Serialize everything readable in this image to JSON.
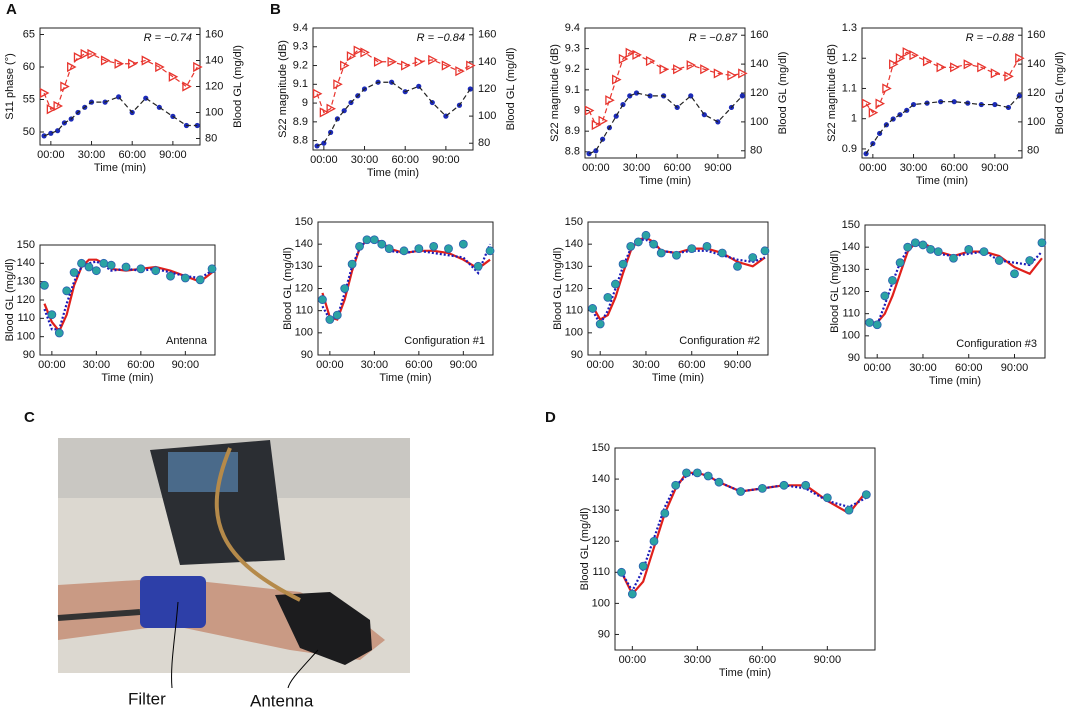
{
  "figure": {
    "panels": [
      "A",
      "B",
      "C",
      "D"
    ],
    "photo_labels": [
      "Filter",
      "Antenna"
    ]
  },
  "chart_data": [
    {
      "type": "line",
      "annotation": "R = −0.74",
      "xlabel": "Time (min)",
      "ylabel": "S11 phase (°)",
      "y2label": "Blood GL (mg/dl)",
      "x": [
        -5,
        0,
        5,
        10,
        15,
        20,
        25,
        30,
        40,
        50,
        60,
        70,
        80,
        90,
        100,
        108
      ],
      "xlim": [
        -8,
        110
      ],
      "xticks": [
        {
          "value": 0,
          "label": "00:00"
        },
        {
          "value": 30,
          "label": "30:00"
        },
        {
          "value": 60,
          "label": "60:00"
        },
        {
          "value": 90,
          "label": "90:00"
        }
      ],
      "ylim": [
        48,
        66
      ],
      "yticks": [
        50,
        55,
        60,
        65
      ],
      "y2lim": [
        75,
        165
      ],
      "y2ticks": [
        80,
        100,
        120,
        140,
        160
      ],
      "series": [
        {
          "color": "#e8352e",
          "marker": "triangle",
          "line": "dashed",
          "line_color": "#e8352e",
          "values": [
            56,
            53.5,
            54,
            57,
            60,
            61.5,
            62,
            62,
            61,
            60.5,
            60.5,
            61,
            60,
            58.5,
            57,
            60
          ]
        },
        {
          "color": "#1c2bb8",
          "marker": "circle",
          "line": "dashed",
          "line_color": "#222222",
          "axis": "y2",
          "values": [
            82,
            84,
            86,
            92,
            95,
            100,
            104,
            108,
            108,
            112,
            100,
            111,
            104,
            97,
            90,
            90
          ]
        }
      ]
    },
    {
      "type": "line",
      "annotation": "R = −0.84",
      "xlabel": "Time (min)",
      "ylabel": "S22 magnitude (dB)",
      "y2label": "Blood GL (mg/dl)",
      "x": [
        -5,
        0,
        5,
        10,
        15,
        20,
        25,
        30,
        40,
        50,
        60,
        70,
        80,
        90,
        100,
        108
      ],
      "xlim": [
        -8,
        110
      ],
      "xticks": [
        {
          "value": 0,
          "label": "00:00"
        },
        {
          "value": 30,
          "label": "30:00"
        },
        {
          "value": 60,
          "label": "60:00"
        },
        {
          "value": 90,
          "label": "90:00"
        }
      ],
      "ylim": [
        8.75,
        9.4
      ],
      "yticks": [
        8.8,
        8.9,
        9,
        9.1,
        9.2,
        9.3,
        9.4
      ],
      "y2lim": [
        75,
        165
      ],
      "y2ticks": [
        80,
        100,
        120,
        140,
        160
      ],
      "series": [
        {
          "color": "#e8352e",
          "marker": "triangle",
          "line": "dashed",
          "line_color": "#e8352e",
          "values": [
            9.05,
            8.95,
            8.97,
            9.1,
            9.2,
            9.25,
            9.28,
            9.27,
            9.22,
            9.22,
            9.2,
            9.22,
            9.23,
            9.2,
            9.17,
            9.2
          ]
        },
        {
          "color": "#1c2bb8",
          "marker": "circle",
          "line": "dashed",
          "line_color": "#222222",
          "axis": "y2",
          "values": [
            78,
            80,
            88,
            98,
            104,
            110,
            115,
            120,
            125,
            125,
            118,
            122,
            110,
            100,
            108,
            120
          ]
        }
      ]
    },
    {
      "type": "line",
      "annotation": "R = −0.87",
      "xlabel": "Time (min)",
      "ylabel": "S22 magnitude (dB)",
      "y2label": "Blood GL (mg/dl)",
      "x": [
        -5,
        0,
        5,
        10,
        15,
        20,
        25,
        30,
        40,
        50,
        60,
        70,
        80,
        90,
        100,
        108
      ],
      "xlim": [
        -8,
        110
      ],
      "xticks": [
        {
          "value": 0,
          "label": "00:00"
        },
        {
          "value": 30,
          "label": "30:00"
        },
        {
          "value": 60,
          "label": "60:00"
        },
        {
          "value": 90,
          "label": "90:00"
        }
      ],
      "ylim": [
        8.77,
        9.4
      ],
      "yticks": [
        8.8,
        8.9,
        9,
        9.1,
        9.2,
        9.3,
        9.4
      ],
      "y2lim": [
        75,
        165
      ],
      "y2ticks": [
        80,
        100,
        120,
        140,
        160
      ],
      "series": [
        {
          "color": "#e8352e",
          "marker": "triangle",
          "line": "dashed",
          "line_color": "#e8352e",
          "values": [
            9.0,
            8.93,
            8.95,
            9.05,
            9.15,
            9.25,
            9.28,
            9.27,
            9.24,
            9.2,
            9.2,
            9.22,
            9.2,
            9.18,
            9.17,
            9.18
          ]
        },
        {
          "color": "#1c2bb8",
          "marker": "circle",
          "line": "dashed",
          "line_color": "#222222",
          "axis": "y2",
          "values": [
            78,
            80,
            88,
            96,
            104,
            112,
            118,
            120,
            118,
            118,
            110,
            118,
            105,
            100,
            110,
            118
          ]
        }
      ]
    },
    {
      "type": "line",
      "annotation": "R = −0.88",
      "xlabel": "Time (min)",
      "ylabel": "S22 magnitude (dB)",
      "y2label": "Blood GL (mg/dl)",
      "x": [
        -5,
        0,
        5,
        10,
        15,
        20,
        25,
        30,
        40,
        50,
        60,
        70,
        80,
        90,
        100,
        108
      ],
      "xlim": [
        -8,
        110
      ],
      "xticks": [
        {
          "value": 0,
          "label": "00:00"
        },
        {
          "value": 30,
          "label": "30:00"
        },
        {
          "value": 60,
          "label": "60:00"
        },
        {
          "value": 90,
          "label": "90:00"
        }
      ],
      "ylim": [
        0.87,
        1.3
      ],
      "yticks": [
        0.9,
        1,
        1.1,
        1.2,
        1.3
      ],
      "y2lim": [
        75,
        165
      ],
      "y2ticks": [
        80,
        100,
        120,
        140,
        160
      ],
      "series": [
        {
          "color": "#e8352e",
          "marker": "triangle",
          "line": "dashed",
          "line_color": "#e8352e",
          "values": [
            1.05,
            1.02,
            1.05,
            1.1,
            1.18,
            1.2,
            1.22,
            1.21,
            1.19,
            1.17,
            1.17,
            1.18,
            1.17,
            1.15,
            1.14,
            1.2
          ]
        },
        {
          "color": "#1c2bb8",
          "marker": "circle",
          "line": "dashed",
          "line_color": "#222222",
          "axis": "y2",
          "values": [
            78,
            85,
            92,
            98,
            102,
            105,
            108,
            112,
            113,
            114,
            114,
            113,
            112,
            112,
            110,
            118
          ]
        }
      ]
    },
    {
      "type": "line",
      "annotation": "Antenna",
      "xlabel": "Time (min)",
      "ylabel": "Blood GL (mg/dl)",
      "x": [
        -5,
        0,
        5,
        10,
        15,
        20,
        25,
        30,
        35,
        40,
        50,
        60,
        70,
        80,
        90,
        100,
        108
      ],
      "xlim": [
        -8,
        110
      ],
      "xticks": [
        {
          "value": 0,
          "label": "00:00"
        },
        {
          "value": 30,
          "label": "30:00"
        },
        {
          "value": 60,
          "label": "60:00"
        },
        {
          "value": 90,
          "label": "90:00"
        }
      ],
      "ylim": [
        90,
        150
      ],
      "yticks": [
        90,
        100,
        110,
        120,
        130,
        140,
        150
      ],
      "series": [
        {
          "color": "#e0201b",
          "marker": null,
          "line": "solid",
          "line_color": "#e0201b",
          "values": [
            118,
            108,
            103,
            112,
            128,
            138,
            142,
            142,
            140,
            137,
            136,
            137,
            138,
            136,
            133,
            130,
            135
          ]
        },
        {
          "color": "#1a1ab8",
          "marker": null,
          "line": "dotted",
          "line_color": "#1a1ab8",
          "values": [
            115,
            104,
            104,
            118,
            130,
            138,
            140,
            141,
            139,
            136,
            137,
            136,
            137,
            135,
            133,
            132,
            136
          ]
        },
        {
          "color": "#2aa3a3",
          "marker": "circle",
          "line": null,
          "values": [
            128,
            112,
            102,
            125,
            135,
            140,
            138,
            136,
            140,
            139,
            138,
            137,
            136,
            133,
            132,
            131,
            137
          ]
        }
      ]
    },
    {
      "type": "line",
      "annotation": "Configuration #1",
      "xlabel": "Time (min)",
      "ylabel": "Blood GL (mg/dl)",
      "x": [
        -5,
        0,
        5,
        10,
        15,
        20,
        25,
        30,
        35,
        40,
        50,
        60,
        70,
        80,
        90,
        100,
        108
      ],
      "xlim": [
        -8,
        110
      ],
      "xticks": [
        {
          "value": 0,
          "label": "00:00"
        },
        {
          "value": 30,
          "label": "30:00"
        },
        {
          "value": 60,
          "label": "60:00"
        },
        {
          "value": 90,
          "label": "90:00"
        }
      ],
      "ylim": [
        90,
        150
      ],
      "yticks": [
        90,
        100,
        110,
        120,
        130,
        140,
        150
      ],
      "series": [
        {
          "color": "#e0201b",
          "marker": null,
          "line": "solid",
          "line_color": "#e0201b",
          "values": [
            118,
            107,
            106,
            115,
            128,
            138,
            142,
            142,
            141,
            138,
            136,
            137,
            137,
            136,
            133,
            129,
            133
          ]
        },
        {
          "color": "#1a1ab8",
          "marker": null,
          "line": "dotted",
          "line_color": "#1a1ab8",
          "values": [
            112,
            106,
            107,
            118,
            130,
            138,
            142,
            142,
            140,
            137,
            136,
            137,
            136,
            135,
            134,
            127,
            140
          ]
        },
        {
          "color": "#2aa3a3",
          "marker": "circle",
          "line": null,
          "values": [
            115,
            106,
            108,
            120,
            131,
            139,
            142,
            142,
            140,
            138,
            137,
            138,
            139,
            138,
            140,
            130,
            137
          ]
        }
      ]
    },
    {
      "type": "line",
      "annotation": "Configuration #2",
      "xlabel": "Time (min)",
      "ylabel": "Blood GL (mg/dl)",
      "x": [
        -5,
        0,
        5,
        10,
        15,
        20,
        25,
        30,
        35,
        40,
        50,
        60,
        70,
        80,
        90,
        100,
        108
      ],
      "xlim": [
        -8,
        110
      ],
      "xticks": [
        {
          "value": 0,
          "label": "00:00"
        },
        {
          "value": 30,
          "label": "30:00"
        },
        {
          "value": 60,
          "label": "60:00"
        },
        {
          "value": 90,
          "label": "90:00"
        }
      ],
      "ylim": [
        90,
        150
      ],
      "yticks": [
        90,
        100,
        110,
        120,
        130,
        140,
        150
      ],
      "series": [
        {
          "color": "#e0201b",
          "marker": null,
          "line": "solid",
          "line_color": "#e0201b",
          "values": [
            112,
            106,
            108,
            116,
            127,
            137,
            142,
            143,
            141,
            137,
            136,
            138,
            138,
            136,
            132,
            130,
            134
          ]
        },
        {
          "color": "#1a1ab8",
          "marker": null,
          "line": "dotted",
          "line_color": "#1a1ab8",
          "values": [
            110,
            104,
            110,
            120,
            130,
            138,
            142,
            142,
            140,
            137,
            136,
            137,
            137,
            135,
            133,
            132,
            134
          ]
        },
        {
          "color": "#2aa3a3",
          "marker": "circle",
          "line": null,
          "values": [
            111,
            104,
            116,
            122,
            131,
            139,
            141,
            144,
            140,
            136,
            135,
            138,
            139,
            136,
            130,
            134,
            137
          ]
        }
      ]
    },
    {
      "type": "line",
      "annotation": "Configuration #3",
      "xlabel": "Time (min)",
      "ylabel": "Blood GL (mg/dl)",
      "x": [
        -5,
        0,
        5,
        10,
        15,
        20,
        25,
        30,
        35,
        40,
        50,
        60,
        70,
        80,
        90,
        100,
        108
      ],
      "xlim": [
        -8,
        110
      ],
      "xticks": [
        {
          "value": 0,
          "label": "00:00"
        },
        {
          "value": 30,
          "label": "30:00"
        },
        {
          "value": 60,
          "label": "60:00"
        },
        {
          "value": 90,
          "label": "90:00"
        }
      ],
      "ylim": [
        90,
        150
      ],
      "yticks": [
        90,
        100,
        110,
        120,
        130,
        140,
        150
      ],
      "series": [
        {
          "color": "#e0201b",
          "marker": null,
          "line": "solid",
          "line_color": "#e0201b",
          "values": [
            106,
            106,
            110,
            118,
            128,
            138,
            142,
            142,
            140,
            138,
            136,
            138,
            138,
            136,
            131,
            128,
            135
          ]
        },
        {
          "color": "#1a1ab8",
          "marker": null,
          "line": "dotted",
          "line_color": "#1a1ab8",
          "values": [
            105,
            105,
            114,
            124,
            133,
            139,
            141,
            141,
            139,
            137,
            136,
            137,
            138,
            134,
            133,
            132,
            138
          ]
        },
        {
          "color": "#2aa3a3",
          "marker": "circle",
          "line": null,
          "values": [
            106,
            105,
            118,
            125,
            133,
            140,
            142,
            141,
            139,
            138,
            135,
            139,
            138,
            134,
            128,
            134,
            142
          ]
        }
      ]
    },
    {
      "type": "line",
      "xlabel": "Time (min)",
      "ylabel": "Blood GL (mg/dl)",
      "x": [
        -5,
        0,
        5,
        10,
        15,
        20,
        25,
        30,
        35,
        40,
        50,
        60,
        70,
        80,
        90,
        100,
        108
      ],
      "xlim": [
        -8,
        112
      ],
      "xticks": [
        {
          "value": 0,
          "label": "00:00"
        },
        {
          "value": 30,
          "label": "30:00"
        },
        {
          "value": 60,
          "label": "60:00"
        },
        {
          "value": 90,
          "label": "90:00"
        }
      ],
      "ylim": [
        85,
        150
      ],
      "yticks": [
        90,
        100,
        110,
        120,
        130,
        140,
        150
      ],
      "series": [
        {
          "color": "#e0201b",
          "marker": null,
          "line": "solid",
          "line_color": "#e0201b",
          "values": [
            110,
            103,
            107,
            118,
            129,
            137,
            142,
            142,
            141,
            139,
            136,
            137,
            138,
            138,
            133,
            129,
            136
          ]
        },
        {
          "color": "#1a1ab8",
          "marker": null,
          "line": "dotted",
          "line_color": "#1a1ab8",
          "values": [
            110,
            104,
            111,
            121,
            131,
            138,
            141,
            142,
            141,
            139,
            136,
            137,
            138,
            137,
            133,
            131,
            134
          ]
        },
        {
          "color": "#2aa3a3",
          "marker": "circle",
          "line": null,
          "values": [
            110,
            103,
            112,
            120,
            129,
            138,
            142,
            142,
            141,
            139,
            136,
            137,
            138,
            138,
            134,
            130,
            135
          ]
        }
      ]
    }
  ]
}
